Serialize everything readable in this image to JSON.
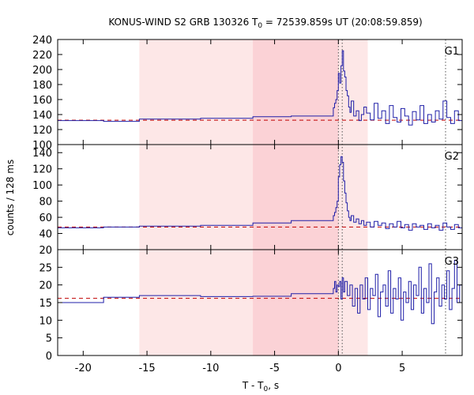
{
  "chart_data": {
    "type": "line",
    "title": {
      "prefix": "KONUS-WIND S2 GRB 130326 T",
      "sub": "0",
      "suffix": " = 72539.859s UT (20:08:59.859)"
    },
    "xlabel": {
      "prefix": "T - T",
      "sub": "0",
      "suffix": ", s"
    },
    "ylabel": "counts / 128 ms",
    "x_axis": {
      "range": [
        -22,
        9.7
      ],
      "ticks": [
        -20,
        -15,
        -10,
        -5,
        0,
        5
      ]
    },
    "shaded_regions": [
      {
        "x": [
          -15.6,
          2.3
        ],
        "color": "#fde7e7"
      },
      {
        "x": [
          -6.7,
          0.0
        ],
        "color": "#fbd2d6"
      }
    ],
    "vlines": [
      {
        "x": 0.0,
        "color": "#555555"
      },
      {
        "x": 0.3,
        "color": "#555555"
      },
      {
        "x": 8.4,
        "color": "#555555"
      }
    ],
    "series_color": "#1f1fa8",
    "background_color": "#c00000",
    "panels": [
      {
        "label": "G1",
        "yrange": [
          100,
          240
        ],
        "yticks": [
          100,
          120,
          140,
          160,
          180,
          200,
          220,
          240
        ],
        "background_level": 132.5,
        "steps": [
          [
            -22,
            132
          ],
          [
            -18.4,
            131
          ],
          [
            -15.6,
            134
          ],
          [
            -10.8,
            135
          ],
          [
            -6.7,
            137
          ],
          [
            -3.7,
            138
          ],
          [
            -0.4,
            149
          ],
          [
            -0.3,
            155
          ],
          [
            -0.2,
            160
          ],
          [
            -0.1,
            172
          ],
          [
            0.0,
            195
          ],
          [
            0.1,
            182
          ],
          [
            0.2,
            205
          ],
          [
            0.3,
            225
          ],
          [
            0.4,
            198
          ],
          [
            0.5,
            190
          ],
          [
            0.6,
            172
          ],
          [
            0.7,
            165
          ],
          [
            0.8,
            150
          ],
          [
            0.9,
            143
          ],
          [
            1.0,
            158
          ],
          [
            1.2,
            138
          ],
          [
            1.4,
            145
          ],
          [
            1.6,
            132
          ],
          [
            1.8,
            140
          ],
          [
            2.0,
            150
          ],
          [
            2.2,
            142
          ],
          [
            2.5,
            133
          ],
          [
            2.8,
            155
          ],
          [
            3.1,
            135
          ],
          [
            3.4,
            145
          ],
          [
            3.7,
            128
          ],
          [
            4.0,
            152
          ],
          [
            4.3,
            136
          ],
          [
            4.6,
            130
          ],
          [
            4.9,
            148
          ],
          [
            5.2,
            138
          ],
          [
            5.5,
            126
          ],
          [
            5.8,
            144
          ],
          [
            6.1,
            133
          ],
          [
            6.4,
            152
          ],
          [
            6.7,
            128
          ],
          [
            7.0,
            140
          ],
          [
            7.3,
            130
          ],
          [
            7.6,
            145
          ],
          [
            7.9,
            134
          ],
          [
            8.2,
            158
          ],
          [
            8.5,
            136
          ],
          [
            8.8,
            128
          ],
          [
            9.1,
            145
          ],
          [
            9.4,
            132
          ],
          [
            9.7,
            132
          ]
        ]
      },
      {
        "label": "G2",
        "yrange": [
          20,
          150
        ],
        "yticks": [
          20,
          40,
          60,
          80,
          100,
          120,
          140
        ],
        "background_level": 48,
        "steps": [
          [
            -22,
            47
          ],
          [
            -18.4,
            48
          ],
          [
            -15.6,
            49
          ],
          [
            -10.8,
            50
          ],
          [
            -6.7,
            53
          ],
          [
            -3.7,
            56
          ],
          [
            -0.4,
            62
          ],
          [
            -0.3,
            66
          ],
          [
            -0.2,
            72
          ],
          [
            -0.1,
            80
          ],
          [
            0.0,
            110
          ],
          [
            0.1,
            125
          ],
          [
            0.2,
            135
          ],
          [
            0.3,
            128
          ],
          [
            0.4,
            105
          ],
          [
            0.5,
            90
          ],
          [
            0.6,
            78
          ],
          [
            0.7,
            68
          ],
          [
            0.8,
            60
          ],
          [
            0.9,
            56
          ],
          [
            1.0,
            62
          ],
          [
            1.2,
            54
          ],
          [
            1.4,
            58
          ],
          [
            1.6,
            52
          ],
          [
            1.8,
            56
          ],
          [
            2.0,
            50
          ],
          [
            2.2,
            54
          ],
          [
            2.5,
            48
          ],
          [
            2.8,
            55
          ],
          [
            3.1,
            50
          ],
          [
            3.4,
            53
          ],
          [
            3.7,
            46
          ],
          [
            4.0,
            52
          ],
          [
            4.3,
            48
          ],
          [
            4.6,
            55
          ],
          [
            4.9,
            47
          ],
          [
            5.2,
            51
          ],
          [
            5.5,
            44
          ],
          [
            5.8,
            52
          ],
          [
            6.1,
            48
          ],
          [
            6.4,
            50
          ],
          [
            6.7,
            45
          ],
          [
            7.0,
            52
          ],
          [
            7.3,
            47
          ],
          [
            7.6,
            50
          ],
          [
            7.9,
            44
          ],
          [
            8.2,
            53
          ],
          [
            8.5,
            48
          ],
          [
            8.8,
            45
          ],
          [
            9.1,
            51
          ],
          [
            9.4,
            47
          ],
          [
            9.7,
            47
          ]
        ]
      },
      {
        "label": "G3",
        "yrange": [
          0,
          30
        ],
        "yticks": [
          0,
          5,
          10,
          15,
          20,
          25
        ],
        "background_level": 16.2,
        "steps": [
          [
            -22,
            15
          ],
          [
            -18.4,
            16.5
          ],
          [
            -15.6,
            17
          ],
          [
            -10.8,
            16.7
          ],
          [
            -6.7,
            16.8
          ],
          [
            -3.7,
            17.5
          ],
          [
            -0.4,
            19
          ],
          [
            -0.3,
            21
          ],
          [
            -0.2,
            18
          ],
          [
            -0.1,
            20
          ],
          [
            0.0,
            19.5
          ],
          [
            0.1,
            21
          ],
          [
            0.2,
            16
          ],
          [
            0.3,
            22
          ],
          [
            0.4,
            18
          ],
          [
            0.5,
            21
          ],
          [
            0.7,
            17
          ],
          [
            0.9,
            20
          ],
          [
            1.1,
            14
          ],
          [
            1.3,
            19
          ],
          [
            1.5,
            12
          ],
          [
            1.7,
            20
          ],
          [
            1.9,
            16
          ],
          [
            2.1,
            22
          ],
          [
            2.3,
            13
          ],
          [
            2.5,
            19
          ],
          [
            2.7,
            17
          ],
          [
            2.9,
            23
          ],
          [
            3.1,
            11
          ],
          [
            3.3,
            18
          ],
          [
            3.5,
            20
          ],
          [
            3.7,
            14
          ],
          [
            3.9,
            24
          ],
          [
            4.1,
            12
          ],
          [
            4.3,
            19
          ],
          [
            4.5,
            16
          ],
          [
            4.7,
            22
          ],
          [
            4.9,
            10
          ],
          [
            5.1,
            18
          ],
          [
            5.3,
            15
          ],
          [
            5.5,
            21
          ],
          [
            5.7,
            13
          ],
          [
            5.9,
            20
          ],
          [
            6.1,
            17
          ],
          [
            6.3,
            25
          ],
          [
            6.5,
            12
          ],
          [
            6.7,
            19
          ],
          [
            6.9,
            15
          ],
          [
            7.1,
            26
          ],
          [
            7.3,
            9
          ],
          [
            7.5,
            18
          ],
          [
            7.7,
            22
          ],
          [
            7.9,
            14
          ],
          [
            8.1,
            20
          ],
          [
            8.3,
            16
          ],
          [
            8.5,
            24
          ],
          [
            8.7,
            13
          ],
          [
            8.9,
            19
          ],
          [
            9.1,
            27
          ],
          [
            9.3,
            15
          ],
          [
            9.5,
            20
          ],
          [
            9.7,
            20
          ]
        ]
      }
    ]
  }
}
